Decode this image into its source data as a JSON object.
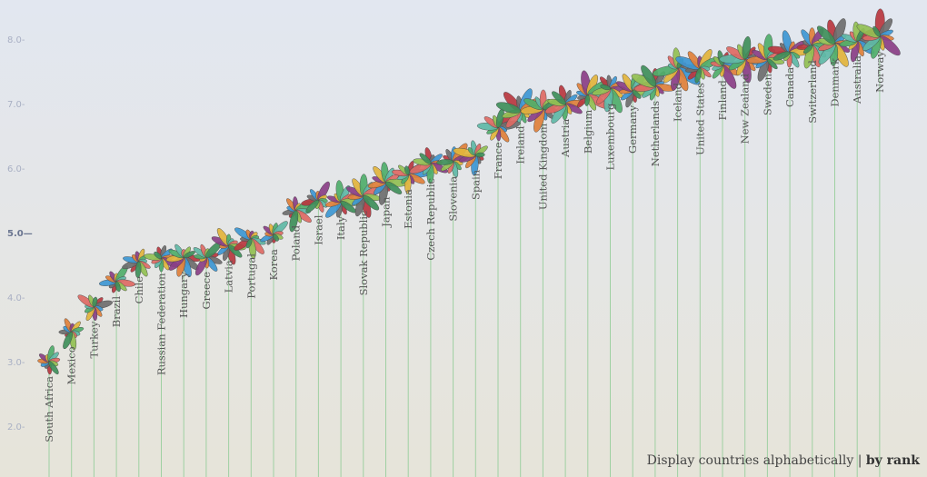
{
  "chart_data": {
    "type": "scatter",
    "title": "",
    "xlabel": "",
    "ylabel": "",
    "ylim": [
      1.7,
      8.6
    ],
    "yticks": [
      "2.0",
      "3.0",
      "4.0",
      "5.0",
      "6.0",
      "7.0",
      "8.0"
    ],
    "grid": false,
    "petal_colors": [
      "#b8373f",
      "#6e6e6e",
      "#3d97d3",
      "#e0803a",
      "#8a3f86",
      "#e2b43c",
      "#4fae6a",
      "#5fb9a6",
      "#de6a64",
      "#93c052",
      "#3f8f5a"
    ],
    "stem_color": "#9fd0a2",
    "categories": [
      "South Africa",
      "Mexico",
      "Turkey",
      "Brazil",
      "Chile",
      "Russian Federation",
      "Hungary",
      "Greece",
      "Latvia",
      "Portugal",
      "Korea",
      "Poland",
      "Israel",
      "Italy",
      "Slovak Republic",
      "Japan",
      "Estonia",
      "Czech Republic",
      "Slovenia",
      "Spain",
      "France",
      "Ireland",
      "United Kingdom",
      "Austria",
      "Belgium",
      "Luxembourg",
      "Germany",
      "Netherlands",
      "Iceland",
      "United States",
      "Finland",
      "New Zealand",
      "Sweden",
      "Canada",
      "Switzerland",
      "Denmark",
      "Australia",
      "Norway"
    ],
    "values": [
      3.0,
      3.46,
      3.85,
      4.24,
      4.55,
      4.6,
      4.62,
      4.62,
      4.8,
      4.9,
      4.97,
      5.34,
      5.5,
      5.48,
      5.57,
      5.78,
      5.9,
      6.07,
      6.1,
      6.2,
      6.63,
      6.88,
      6.92,
      6.99,
      7.13,
      7.23,
      7.2,
      7.27,
      7.55,
      7.55,
      7.59,
      7.69,
      7.69,
      7.79,
      7.9,
      7.93,
      7.97,
      8.04
    ]
  },
  "footer": {
    "prefix": "Display countries alphabetically",
    "separator": " | ",
    "by_rank": "by rank"
  }
}
